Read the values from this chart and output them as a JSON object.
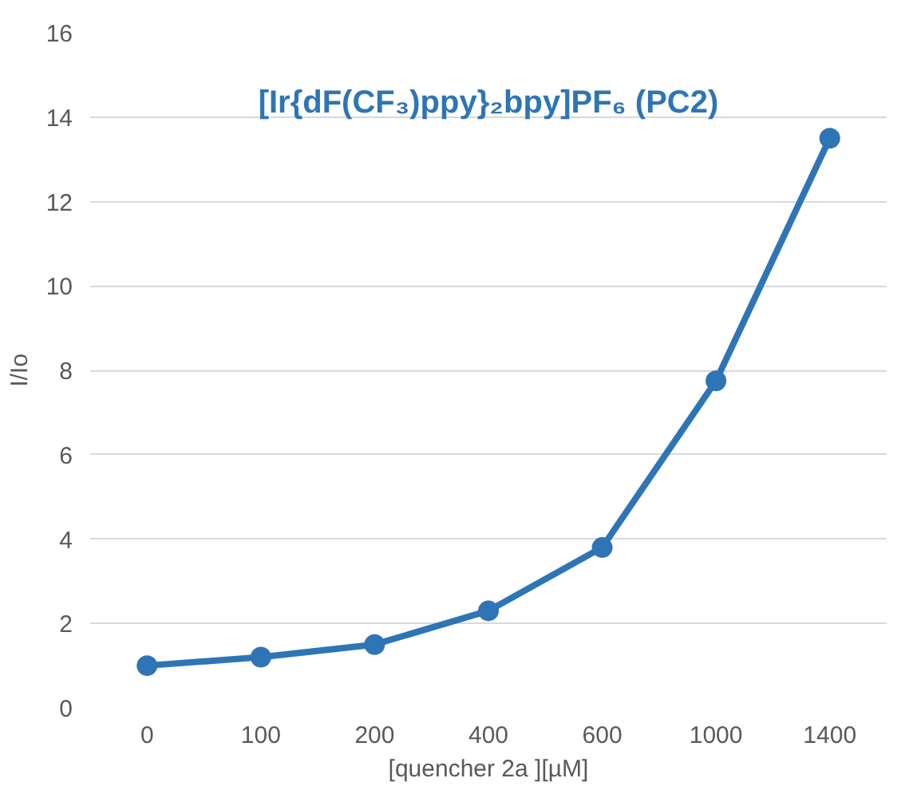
{
  "chart_data": {
    "type": "line",
    "title": "[Ir{dF(CF₃)ppy}₂bpy]PF₆ (PC2)",
    "xlabel": "[quencher 2a ][µM]",
    "ylabel": "I/Io",
    "categories": [
      "0",
      "100",
      "200",
      "400",
      "600",
      "1000",
      "1400"
    ],
    "series": [
      {
        "color": "#2e75b6",
        "values": [
          1.0,
          1.2,
          1.5,
          2.3,
          3.8,
          7.75,
          13.5
        ]
      }
    ],
    "ylim": [
      0,
      16
    ],
    "yticks": [
      0,
      2,
      4,
      6,
      8,
      10,
      12,
      14,
      16
    ],
    "grid": "y",
    "marker": "circle",
    "line_style": "solid"
  }
}
